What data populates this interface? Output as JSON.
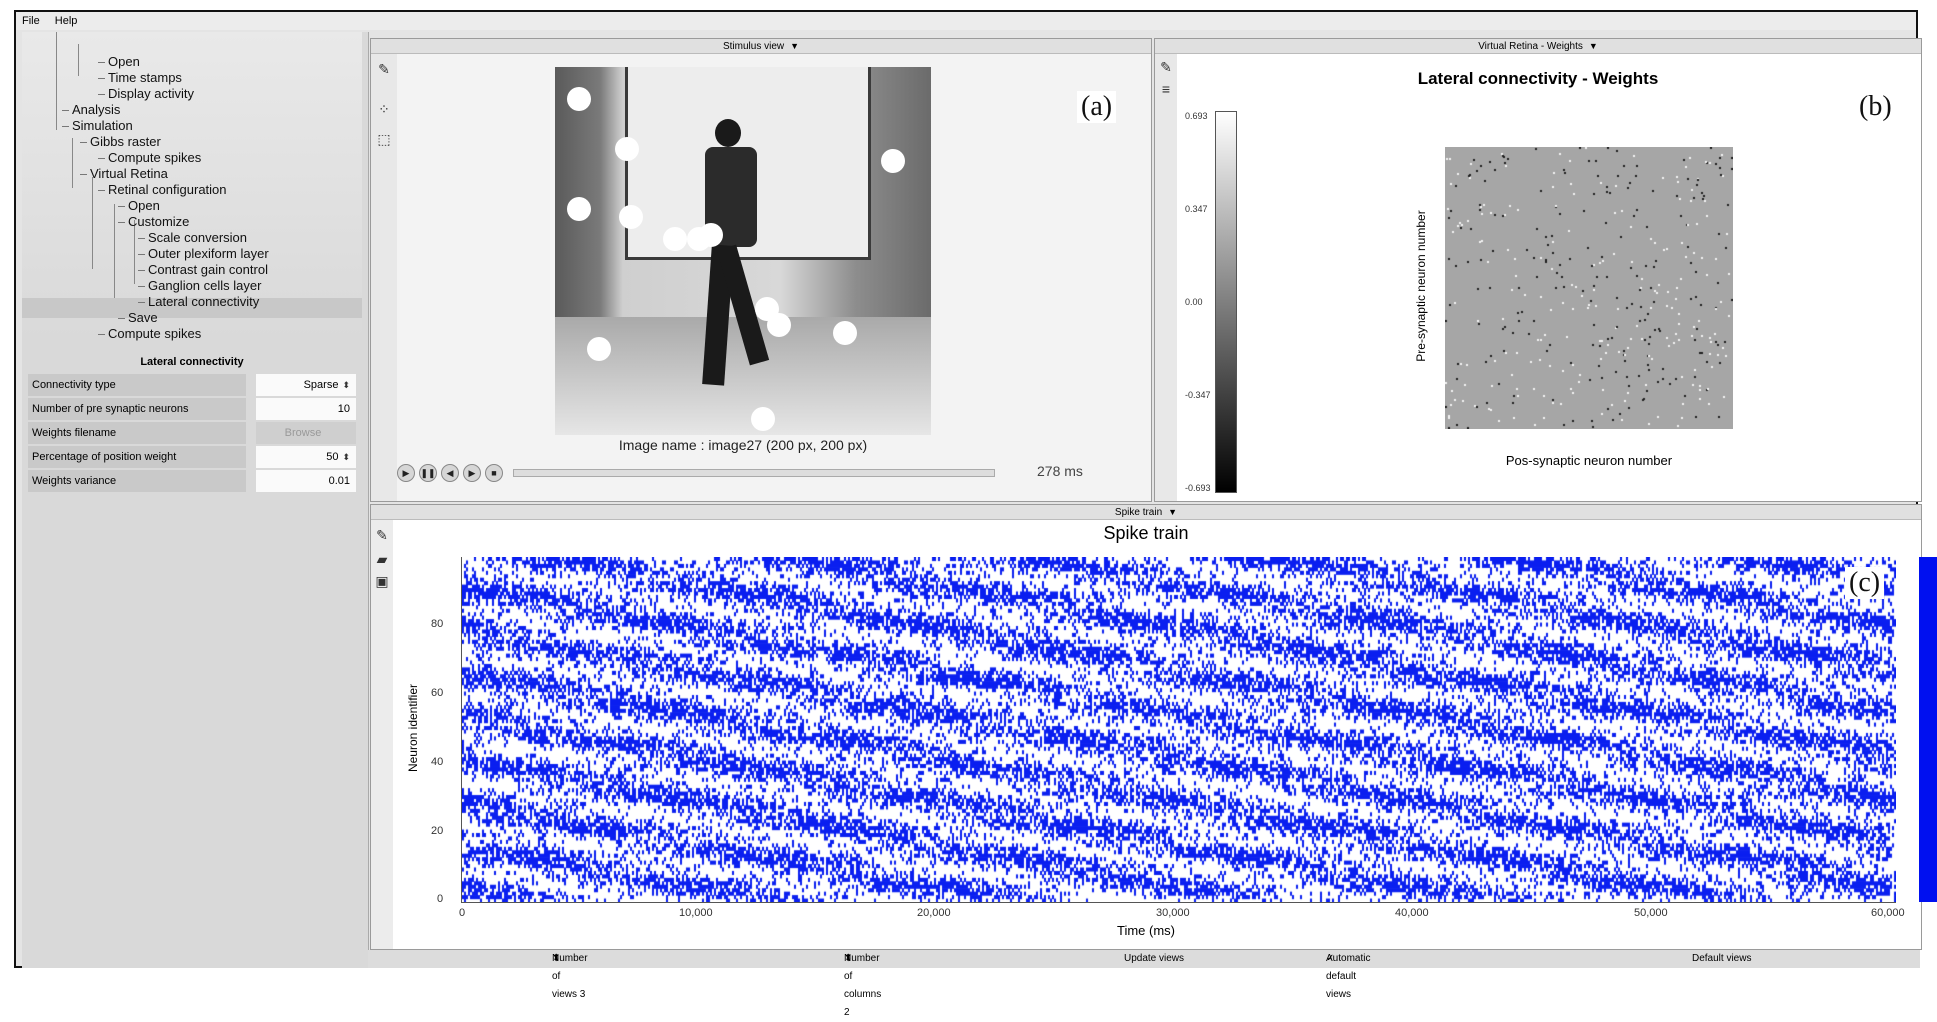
{
  "menu": [
    "File",
    "Help"
  ],
  "tree": {
    "items": [
      {
        "label": "Open"
      },
      {
        "label": "Time stamps"
      },
      {
        "label": "Display activity"
      },
      {
        "label": "Analysis"
      },
      {
        "label": "Simulation"
      },
      {
        "label": "Gibbs raster"
      },
      {
        "label": "Compute spikes"
      },
      {
        "label": "Virtual Retina"
      },
      {
        "label": "Retinal configuration"
      },
      {
        "label": "Open"
      },
      {
        "label": "Customize"
      },
      {
        "label": "Scale conversion"
      },
      {
        "label": "Outer plexiform layer"
      },
      {
        "label": "Contrast gain control"
      },
      {
        "label": "Ganglion cells layer"
      },
      {
        "label": "Lateral connectivity"
      },
      {
        "label": "Save"
      },
      {
        "label": "Compute spikes"
      }
    ]
  },
  "props": {
    "title": "Lateral connectivity",
    "rows": [
      {
        "label": "Connectivity type",
        "value": "Sparse"
      },
      {
        "label": "Number of pre synaptic neurons",
        "value": "10"
      },
      {
        "label": "Weights filename",
        "value": "Browse"
      },
      {
        "label": "Percentage of position weight",
        "value": "50"
      },
      {
        "label": "Weights variance",
        "value": "0.01"
      }
    ]
  },
  "stimulus": {
    "tab": "Stimulus view",
    "letter": "(a)",
    "caption": "Image name : image27 (200 px, 200 px)",
    "time_value": "278",
    "time_unit": "ms",
    "control_icons": [
      "play-icon",
      "pause-icon",
      "rewind-icon",
      "forward-icon",
      "stop-icon"
    ]
  },
  "weights": {
    "tab": "Virtual Retina - Weights",
    "letter": "(b)",
    "title": "Lateral connectivity - Weights",
    "ylabel": "Pre-synaptic neuron number",
    "xlabel": "Pos-synaptic neuron number",
    "colorbar_ticks": [
      "0.693",
      "0.347",
      "0.00",
      "-0.347",
      "-0.693"
    ]
  },
  "spike": {
    "tab": "Spike train",
    "letter": "(c)",
    "title": "Spike train",
    "ylabel": "Neuron identifier",
    "xlabel": "Time (ms)",
    "yticks": [
      "0",
      "20",
      "40",
      "60",
      "80"
    ],
    "xticks": [
      "0",
      "10,000",
      "20,000",
      "30,000",
      "40,000",
      "50,000",
      "60,000"
    ]
  },
  "bottom": {
    "num_views": "Number of views 3",
    "num_columns": "Number of columns 2",
    "update": "Update views",
    "auto": "Automatic default views",
    "default": "Default views"
  },
  "colors": {
    "spike": "#0a1ff0",
    "accent": "#0010f0"
  }
}
